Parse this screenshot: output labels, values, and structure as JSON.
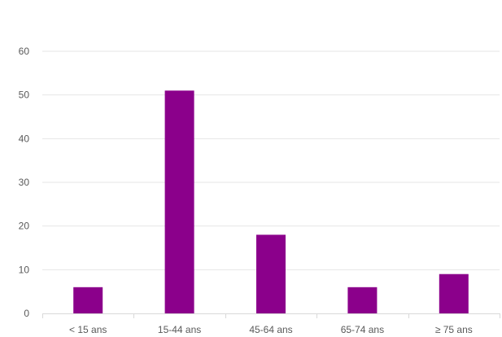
{
  "chart_data": {
    "type": "bar",
    "categories": [
      "< 15 ans",
      "15-44 ans",
      "45-64 ans",
      "65-74 ans",
      "≥ 75 ans"
    ],
    "values": [
      6,
      51,
      18,
      6,
      9
    ],
    "ylim": [
      0,
      60
    ],
    "yticks": [
      "0",
      "10",
      "20",
      "30",
      "40",
      "50",
      "60"
    ],
    "grid": true,
    "legend": "none",
    "colors": {
      "bar": "#8B008B",
      "grid": "#E6E6E6",
      "axis": "#D9D9D9",
      "text": "#595959"
    }
  }
}
